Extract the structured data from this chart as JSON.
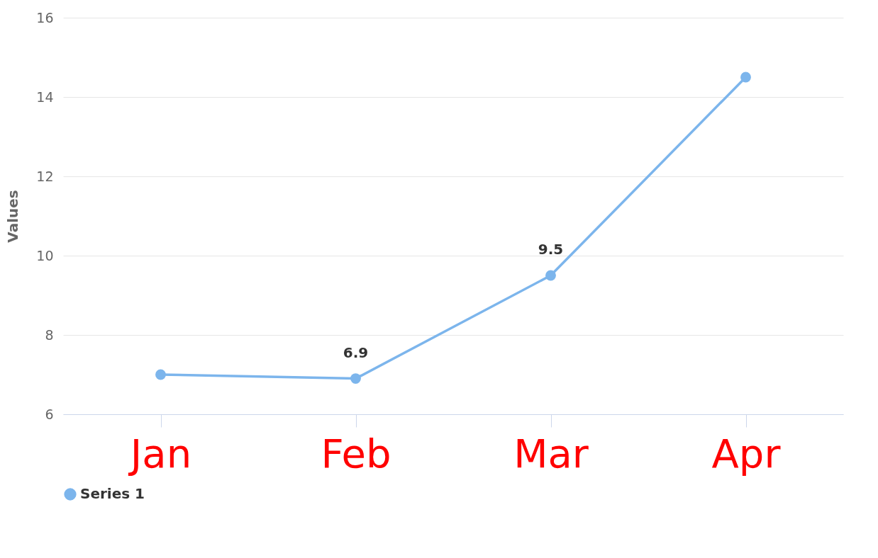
{
  "chart_data": {
    "type": "line",
    "ylabel": "Values",
    "categories": [
      "Jan",
      "Feb",
      "Mar",
      "Apr"
    ],
    "series": [
      {
        "name": "Series 1",
        "color": "#7cb5ec",
        "values": [
          7.0,
          6.9,
          9.5,
          14.5
        ],
        "value_labels": [
          null,
          "6.9",
          "9.5",
          null
        ]
      }
    ],
    "ylim": [
      6,
      16
    ],
    "yticks": [
      6,
      8,
      10,
      12,
      14,
      16
    ],
    "grid": "y",
    "legend": "bottom",
    "marker": "circle",
    "line_style": "solid"
  }
}
